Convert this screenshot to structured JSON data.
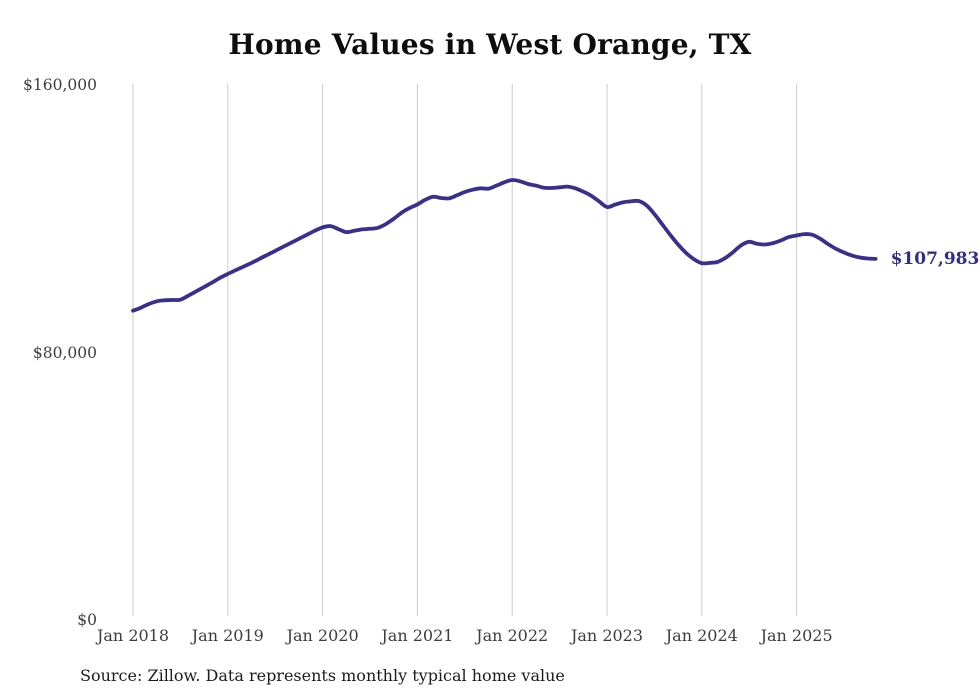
{
  "source_note": "Source: Zillow. Data represents monthly typical home value",
  "chart_data": {
    "type": "line",
    "title": "Home Values in West Orange, TX",
    "xlabel": "",
    "ylabel": "",
    "ylim": [
      0,
      160000
    ],
    "grid": "vertical-only",
    "legend_position": "none",
    "line_color": "#38308c",
    "gridline_color": "#cbcbcb",
    "end_label": "$107,983",
    "latest_value": 107983,
    "frequency": "monthly",
    "start_month": "2018-01",
    "end_month": "2025-11",
    "y_ticks": [
      {
        "value": 0,
        "label": "$0"
      },
      {
        "value": 80000,
        "label": "$80,000"
      },
      {
        "value": 160000,
        "label": "$160,000"
      }
    ],
    "x_tick_labels": [
      "Jan 2018",
      "Jan 2019",
      "Jan 2020",
      "Jan 2021",
      "Jan 2022",
      "Jan 2023",
      "Jan 2024",
      "Jan 2025"
    ],
    "values": [
      92500,
      93400,
      94500,
      95300,
      95600,
      95700,
      95800,
      97000,
      98300,
      99600,
      100900,
      102300,
      103500,
      104600,
      105700,
      106800,
      108000,
      109200,
      110400,
      111600,
      112800,
      114000,
      115200,
      116400,
      117400,
      117800,
      116900,
      116000,
      116400,
      116800,
      117000,
      117300,
      118400,
      120000,
      121800,
      123200,
      124300,
      125700,
      126600,
      126200,
      126100,
      127000,
      128000,
      128700,
      129100,
      129000,
      129900,
      130900,
      131600,
      131200,
      130400,
      129900,
      129300,
      129200,
      129400,
      129600,
      129100,
      128100,
      126900,
      125200,
      123500,
      124200,
      124900,
      125200,
      125300,
      124000,
      121400,
      118300,
      115200,
      112300,
      109800,
      107900,
      106700,
      106800,
      107100,
      108300,
      110100,
      112100,
      113100,
      112500,
      112300,
      112700,
      113500,
      114500,
      115000,
      115400,
      115200,
      114000,
      112400,
      111000,
      109900,
      109000,
      108400,
      108100,
      107983
    ]
  }
}
